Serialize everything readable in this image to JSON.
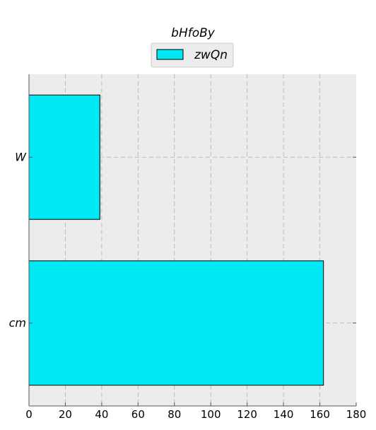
{
  "chart_data": {
    "type": "bar",
    "orientation": "horizontal",
    "title": "bHfoBy",
    "xlabel": "",
    "ylabel": "",
    "categories": [
      "W",
      "cm"
    ],
    "series": [
      {
        "name": "zwQn",
        "values": [
          39,
          162
        ]
      }
    ],
    "xlim": [
      0,
      180
    ],
    "xticks": [
      0,
      20,
      40,
      60,
      80,
      100,
      120,
      140,
      160,
      180
    ],
    "grid": true,
    "legend": "top-center",
    "colors": {
      "bar_fill": "#00e8f4",
      "bar_edge": "#000000",
      "plot_bg": "#ececec",
      "grid": "#b0b0b0"
    }
  }
}
